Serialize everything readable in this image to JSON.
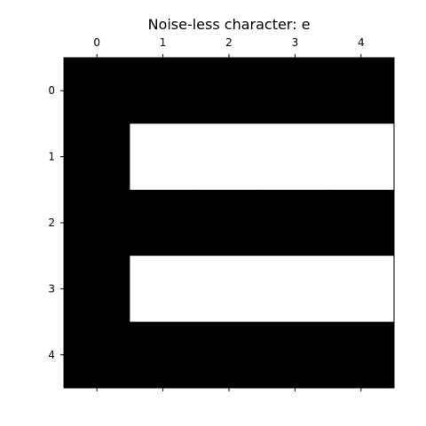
{
  "chart_data": {
    "type": "heatmap",
    "title": "Noise-less character: e",
    "xlabel": "",
    "ylabel": "",
    "x_ticks": [
      "0",
      "1",
      "2",
      "3",
      "4"
    ],
    "y_ticks": [
      "0",
      "1",
      "2",
      "3",
      "4"
    ],
    "x_tick_position": "top",
    "colormap": "gray",
    "values": [
      [
        0,
        0,
        0,
        0,
        0
      ],
      [
        0,
        1,
        1,
        1,
        1
      ],
      [
        0,
        0,
        0,
        0,
        0
      ],
      [
        0,
        1,
        1,
        1,
        1
      ],
      [
        0,
        0,
        0,
        0,
        0
      ]
    ],
    "value_colors": {
      "0": "#000000",
      "1": "#ffffff"
    },
    "grid": false
  }
}
